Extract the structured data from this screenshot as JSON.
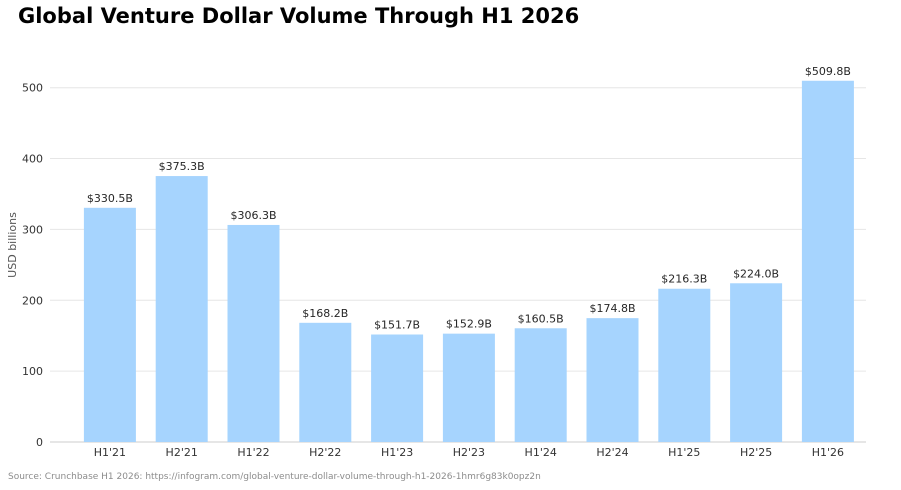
{
  "chart_data": {
    "type": "bar",
    "title": "Global Venture Dollar Volume Through H1 2026",
    "ylabel": "USD billions",
    "xlabel": "",
    "categories": [
      "H1'21",
      "H2'21",
      "H1'22",
      "H2'22",
      "H1'23",
      "H2'23",
      "H1'24",
      "H2'24",
      "H1'25",
      "H2'25",
      "H1'26"
    ],
    "values": [
      330.5,
      375.3,
      306.3,
      168.2,
      151.7,
      152.9,
      160.5,
      174.8,
      216.3,
      224.0,
      509.8
    ],
    "data_labels": [
      "$330.5B",
      "$375.3B",
      "$306.3B",
      "$168.2B",
      "$151.7B",
      "$152.9B",
      "$160.5B",
      "$174.8B",
      "$216.3B",
      "$224.0B",
      "$509.8B"
    ],
    "yticks": [
      0,
      100,
      200,
      300,
      400,
      500
    ],
    "ylim": [
      0,
      530
    ],
    "grid": true,
    "colors": {
      "bar": "#a6d4fe",
      "grid": "#e6e6e6",
      "axis": "#cccccc"
    }
  },
  "source_note": "Source: Crunchbase H1 2026: https://infogram.com/global-venture-dollar-volume-through-h1-2026-1hmr6g83k0opz2n"
}
